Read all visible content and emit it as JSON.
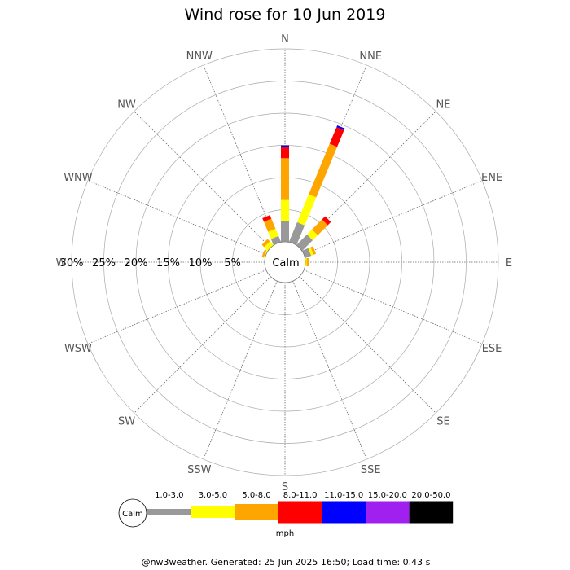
{
  "chart_data": {
    "type": "wind-rose",
    "title": "Wind rose for 10 Jun 2019",
    "calm_label": "Calm",
    "unit": "mph",
    "ring_labels": [
      "5%",
      "10%",
      "15%",
      "20%",
      "25%",
      "30%"
    ],
    "ring_values": [
      5,
      10,
      15,
      20,
      25,
      30
    ],
    "rmax_percent": 30,
    "directions": [
      "N",
      "NNE",
      "NE",
      "ENE",
      "E",
      "ESE",
      "SE",
      "SSE",
      "S",
      "SSW",
      "SW",
      "WSW",
      "W",
      "WNW",
      "NW",
      "NNW"
    ],
    "speed_bins": [
      {
        "label": "1.0-3.0",
        "color": "#999999"
      },
      {
        "label": "3.0-5.0",
        "color": "#ffff00"
      },
      {
        "label": "5.0-8.0",
        "color": "#ffa500"
      },
      {
        "label": "8.0-11.0",
        "color": "#ff0000"
      },
      {
        "label": "11.0-15.0",
        "color": "#0000ff"
      },
      {
        "label": "15.0-20.0",
        "color": "#a020f0"
      },
      {
        "label": "20.0-50.0",
        "color": "#000000"
      }
    ],
    "cumulative_percent": {
      "N": [
        3.2,
        6.5,
        13.0,
        14.7,
        15.0,
        15.0,
        15.0
      ],
      "NNE": [
        3.3,
        8.0,
        16.5,
        19.3,
        19.6,
        19.6,
        19.6
      ],
      "NE": [
        2.3,
        3.4,
        5.6,
        6.3,
        6.3,
        6.3,
        6.3
      ],
      "ENE": [
        1.0,
        1.4,
        1.8,
        1.8,
        1.8,
        1.8,
        1.8
      ],
      "E": [
        0.0,
        0.2,
        0.5,
        0.5,
        0.5,
        0.5,
        0.5
      ],
      "ESE": [
        0,
        0,
        0,
        0,
        0,
        0,
        0
      ],
      "SE": [
        0,
        0,
        0,
        0,
        0,
        0,
        0
      ],
      "SSE": [
        0,
        0,
        0,
        0,
        0,
        0,
        0
      ],
      "S": [
        0,
        0,
        0,
        0,
        0,
        0,
        0
      ],
      "SSW": [
        0,
        0,
        0,
        0,
        0,
        0,
        0
      ],
      "SW": [
        0,
        0,
        0,
        0,
        0,
        0,
        0
      ],
      "WSW": [
        0,
        0,
        0,
        0,
        0,
        0,
        0
      ],
      "W": [
        0,
        0,
        0,
        0,
        0,
        0,
        0
      ],
      "WNW": [
        0.0,
        0.2,
        0.5,
        0.5,
        0.5,
        0.5,
        0.5
      ],
      "NW": [
        0.0,
        0.8,
        1.3,
        1.3,
        1.3,
        1.3,
        1.3
      ],
      "NNW": [
        1.0,
        2.2,
        3.9,
        4.5,
        4.5,
        4.5,
        4.5
      ]
    }
  },
  "footer": "@nw3weather. Generated: 25 Jun 2025 16:50; Load time: 0.43 s"
}
